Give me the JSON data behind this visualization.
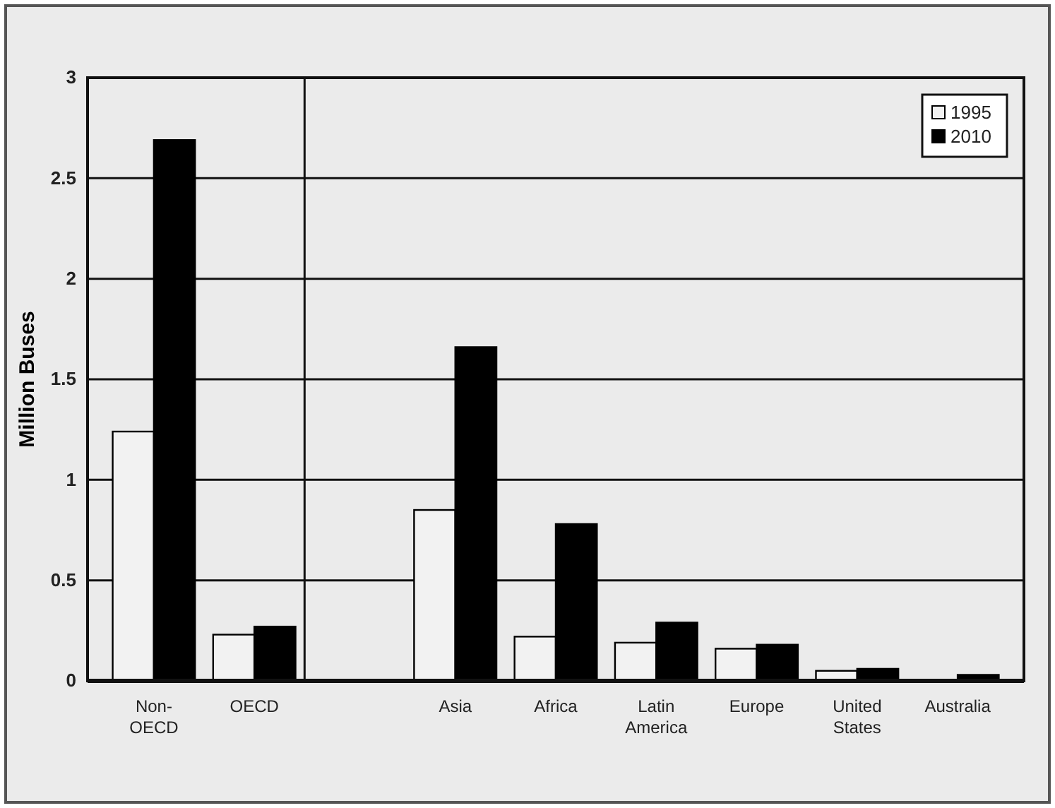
{
  "chart_data": {
    "type": "bar",
    "ylabel": "Million Buses",
    "categories": [
      "Non-\nOECD",
      "OECD",
      null,
      "Asia",
      "Africa",
      "Latin\nAmerica",
      "Europe",
      "United\nStates",
      "Australia"
    ],
    "series": [
      {
        "name": "1995",
        "color": "#f2f2f2",
        "values": [
          1.24,
          0.23,
          null,
          0.85,
          0.22,
          0.19,
          0.16,
          0.05,
          null
        ]
      },
      {
        "name": "2010",
        "color": "#000000",
        "values": [
          2.69,
          0.27,
          null,
          1.66,
          0.78,
          0.29,
          0.18,
          0.06,
          0.03
        ]
      }
    ],
    "ylim": [
      0,
      3
    ],
    "yticks": [
      0,
      0.5,
      1,
      1.5,
      2,
      2.5,
      3
    ],
    "grid": "y",
    "legend": "top right"
  }
}
